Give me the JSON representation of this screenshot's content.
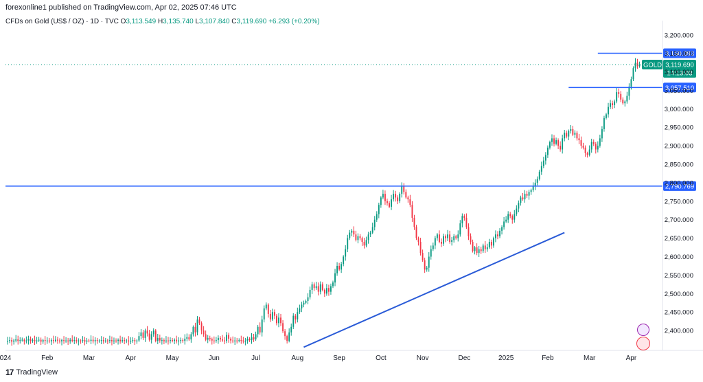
{
  "header": {
    "published": "forexonline1 published on TradingView.com, Apr 02, 2025 07:46 UTC"
  },
  "ohlc": {
    "symbol": "CFDs on Gold (US$ / OZ) · 1D · TVC",
    "o_label": "O",
    "o": "3,113.549",
    "h_label": "H",
    "h": "3,135.740",
    "l_label": "L",
    "l": "3,107.840",
    "c_label": "C",
    "c": "3,119.690",
    "change": "+6.293 (+0.20%)"
  },
  "footer": {
    "brand": "TradingView"
  },
  "colors": {
    "up": "#089981",
    "down": "#f23645",
    "line": "#2962ff",
    "trend": "#2a5bd7",
    "price": "#089981"
  },
  "chart_data": {
    "type": "candlestick",
    "title": "CFDs on Gold (US$ / OZ) · 1D · TVC",
    "ylim": [
      2350,
      3220
    ],
    "y_ticks": [
      "3,200.000",
      "3,150.000",
      "3,100.000",
      "3,050.000",
      "3,000.000",
      "2,950.000",
      "2,900.000",
      "2,850.000",
      "2,800.000",
      "2,750.000",
      "2,700.000",
      "2,650.000",
      "2,600.000",
      "2,550.000",
      "2,500.000",
      "2,450.000",
      "2,400.000"
    ],
    "y_tick_values": [
      3200,
      3150,
      3100,
      3050,
      3000,
      2950,
      2900,
      2850,
      2800,
      2750,
      2700,
      2650,
      2600,
      2550,
      2500,
      2450,
      2400
    ],
    "x_ticks": [
      "024",
      "Feb",
      "Mar",
      "Apr",
      "May",
      "Jun",
      "Jul",
      "Aug",
      "Sep",
      "Oct",
      "Nov",
      "Dec",
      "2025",
      "Feb",
      "Mar",
      "Apr"
    ],
    "x_tick_index": [
      0,
      20,
      40,
      60,
      80,
      100,
      120,
      140,
      160,
      180,
      200,
      220,
      240,
      260,
      280,
      300
    ],
    "x_index_range": [
      0,
      315
    ],
    "horizontal_levels": [
      {
        "label": "3,150.393",
        "value": 3150.393,
        "from_index": 284
      },
      {
        "label": "3,057.510",
        "value": 3057.51,
        "from_index": 270
      },
      {
        "label": "2,790.769",
        "value": 2790.769,
        "from_index": 0
      }
    ],
    "current_price": {
      "label": "3,119.690",
      "value": 3119.69,
      "symbol": "GOLD",
      "countdown": "14:13:03"
    },
    "trendline": {
      "from": [
        143,
        2355
      ],
      "to": [
        268,
        2665
      ]
    },
    "closes": [
      2371,
      2372,
      2374,
      2370,
      2373,
      2376,
      2372,
      2374,
      2375,
      2371,
      2373,
      2377,
      2372,
      2374,
      2371,
      2373,
      2375,
      2370,
      2374,
      2372,
      2373,
      2371,
      2374,
      2372,
      2375,
      2373,
      2371,
      2374,
      2372,
      2373,
      2371,
      2375,
      2372,
      2374,
      2371,
      2373,
      2372,
      2374,
      2370,
      2373,
      2372,
      2375,
      2371,
      2374,
      2372,
      2373,
      2374,
      2371,
      2373,
      2372,
      2374,
      2371,
      2373,
      2372,
      2375,
      2371,
      2374,
      2372,
      2373,
      2371,
      2372,
      2374,
      2371,
      2373,
      2385,
      2395,
      2380,
      2400,
      2392,
      2375,
      2390,
      2400,
      2372,
      2380,
      2373,
      2374,
      2371,
      2373,
      2372,
      2374,
      2372,
      2375,
      2371,
      2373,
      2374,
      2372,
      2378,
      2382,
      2376,
      2390,
      2410,
      2395,
      2430,
      2420,
      2400,
      2390,
      2375,
      2380,
      2377,
      2373,
      2372,
      2374,
      2380,
      2376,
      2373,
      2372,
      2388,
      2378,
      2373,
      2371,
      2373,
      2372,
      2374,
      2373,
      2371,
      2372,
      2378,
      2374,
      2382,
      2376,
      2390,
      2410,
      2395,
      2430,
      2460,
      2470,
      2445,
      2430,
      2450,
      2440,
      2420,
      2435,
      2420,
      2398,
      2385,
      2372,
      2395,
      2410,
      2440,
      2430,
      2450,
      2460,
      2470,
      2475,
      2480,
      2490,
      2510,
      2525,
      2515,
      2520,
      2505,
      2525,
      2510,
      2500,
      2515,
      2505,
      2520,
      2530,
      2555,
      2575,
      2565,
      2580,
      2600,
      2620,
      2650,
      2665,
      2670,
      2660,
      2645,
      2655,
      2650,
      2640,
      2630,
      2645,
      2660,
      2665,
      2680,
      2700,
      2715,
      2740,
      2760,
      2770,
      2750,
      2745,
      2735,
      2755,
      2770,
      2760,
      2750,
      2770,
      2790,
      2775,
      2760,
      2755,
      2740,
      2705,
      2680,
      2650,
      2640,
      2610,
      2590,
      2565,
      2570,
      2600,
      2620,
      2630,
      2650,
      2660,
      2640,
      2635,
      2655,
      2650,
      2660,
      2640,
      2645,
      2655,
      2650,
      2660,
      2690,
      2710,
      2705,
      2680,
      2655,
      2640,
      2615,
      2625,
      2610,
      2620,
      2615,
      2630,
      2620,
      2625,
      2640,
      2630,
      2650,
      2660,
      2655,
      2670,
      2680,
      2695,
      2700,
      2715,
      2710,
      2700,
      2715,
      2730,
      2745,
      2760,
      2755,
      2770,
      2765,
      2775,
      2780,
      2790,
      2800,
      2810,
      2830,
      2845,
      2860,
      2875,
      2895,
      2910,
      2920,
      2905,
      2915,
      2900,
      2890,
      2920,
      2935,
      2925,
      2940,
      2945,
      2930,
      2935,
      2920,
      2915,
      2900,
      2895,
      2880,
      2875,
      2890,
      2910,
      2905,
      2890,
      2900,
      2920,
      2945,
      2975,
      2985,
      3005,
      3015,
      3010,
      3020,
      3045,
      3040,
      3025,
      3015,
      3020,
      3035,
      3060,
      3080,
      3110,
      3125,
      3115,
      3119.69
    ]
  }
}
